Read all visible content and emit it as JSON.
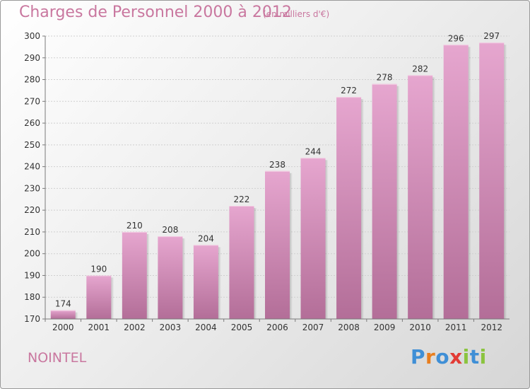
{
  "page": {
    "commune": "NOINTEL",
    "logo": {
      "letters": [
        "P",
        "r",
        "o",
        "x",
        "i",
        "t",
        "i"
      ],
      "colors": [
        "#3f8fd6",
        "#e87e1e",
        "#3f8fd6",
        "#e23b35",
        "#8bc43f",
        "#3f8fd6",
        "#8bc43f"
      ]
    }
  },
  "colors": {
    "accent_text": "#c9779f",
    "bar_top": "#e6a6cf",
    "bar_bottom": "#b36e98",
    "grid": "#cfcfcf",
    "axis": "#7a7a7a"
  },
  "chart_data": {
    "type": "bar",
    "title": "Charges de Personnel 2000 à 2012",
    "subtitle": "(en milliers d'€)",
    "categories": [
      "2000",
      "2001",
      "2002",
      "2003",
      "2004",
      "2005",
      "2006",
      "2007",
      "2008",
      "2009",
      "2010",
      "2011",
      "2012"
    ],
    "values": [
      174,
      190,
      210,
      208,
      204,
      222,
      238,
      244,
      272,
      278,
      282,
      296,
      297
    ],
    "ylim": [
      170,
      300
    ],
    "yticks": [
      170,
      180,
      190,
      200,
      210,
      220,
      230,
      240,
      250,
      260,
      270,
      280,
      290,
      300
    ],
    "xlabel": "",
    "ylabel": "",
    "grid": true,
    "data_labels": true
  }
}
